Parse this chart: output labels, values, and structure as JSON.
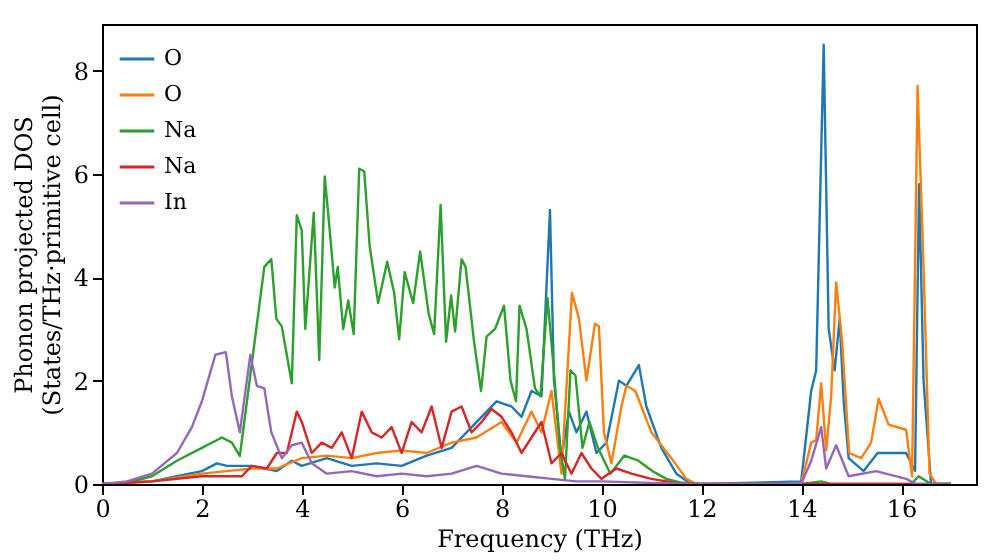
{
  "chart_data": {
    "type": "line",
    "xlabel": "Frequency (THz)",
    "ylabel": "Phonon projected DOS\n(States/THz·primitive cell)",
    "xlim": [
      0,
      17.5
    ],
    "ylim": [
      0,
      8.9
    ],
    "xticks": [
      0,
      2,
      4,
      6,
      8,
      10,
      12,
      14,
      16
    ],
    "yticks": [
      0,
      2,
      4,
      6,
      8
    ],
    "grid": false,
    "legend": "top left",
    "marker": "none",
    "line_style": "solid",
    "series": [
      {
        "name": "O",
        "color": "#1f77b4",
        "x": [
          0,
          1,
          1.5,
          2,
          2.3,
          2.5,
          3,
          3.5,
          3.8,
          4,
          4.5,
          5,
          5.5,
          6,
          6.5,
          7,
          7.3,
          7.6,
          7.9,
          8.2,
          8.4,
          8.6,
          8.8,
          8.97,
          9.05,
          9.2,
          9.35,
          9.5,
          9.7,
          9.9,
          10.1,
          10.35,
          10.5,
          10.75,
          10.9,
          11.2,
          11.5,
          11.8,
          12,
          14,
          14.2,
          14.3,
          14.45,
          14.55,
          14.67,
          14.77,
          14.85,
          14.95,
          15.25,
          15.53,
          16.1,
          16.28,
          16.36,
          16.45,
          16.6,
          17
        ],
        "values": [
          0,
          0.05,
          0.15,
          0.25,
          0.4,
          0.35,
          0.35,
          0.25,
          0.45,
          0.35,
          0.5,
          0.35,
          0.4,
          0.35,
          0.55,
          0.7,
          1.0,
          1.3,
          1.6,
          1.5,
          1.3,
          1.8,
          1.7,
          5.3,
          2.0,
          0.5,
          1.4,
          1.0,
          1.4,
          0.6,
          0.8,
          2.0,
          1.9,
          2.3,
          1.5,
          0.7,
          0.2,
          0,
          0,
          0.05,
          1.8,
          2.2,
          8.5,
          3.0,
          2.2,
          3.2,
          1.6,
          0.5,
          0.25,
          0.6,
          0.6,
          0.25,
          5.8,
          2.0,
          0,
          0
        ]
      },
      {
        "name": "O",
        "color": "#ff7f0e",
        "x": [
          0,
          1,
          2,
          2.5,
          3,
          3.5,
          4,
          4.5,
          5,
          5.5,
          6,
          6.5,
          7,
          7.5,
          8,
          8.3,
          8.6,
          8.8,
          9.0,
          9.2,
          9.41,
          9.55,
          9.7,
          9.87,
          9.95,
          10.05,
          10.2,
          10.4,
          10.5,
          10.68,
          11.0,
          11.4,
          11.7,
          11.9,
          12,
          14,
          14.2,
          14.3,
          14.4,
          14.5,
          14.6,
          14.7,
          14.82,
          14.96,
          15.2,
          15.4,
          15.55,
          15.75,
          16.1,
          16.22,
          16.33,
          16.44,
          16.57,
          16.7,
          17
        ],
        "values": [
          0,
          0.05,
          0.2,
          0.25,
          0.3,
          0.3,
          0.5,
          0.55,
          0.5,
          0.6,
          0.65,
          0.6,
          0.8,
          0.9,
          1.2,
          0.8,
          1.4,
          1.0,
          1.8,
          0.2,
          3.7,
          3.2,
          2.0,
          3.1,
          3.05,
          1.0,
          0.4,
          1.5,
          1.9,
          1.8,
          1.0,
          0.5,
          0.1,
          0,
          0,
          0,
          0.8,
          0.85,
          1.95,
          0.65,
          1.7,
          3.9,
          2.75,
          0.6,
          0.5,
          0.8,
          1.65,
          1.15,
          1.05,
          0.15,
          7.7,
          4.5,
          0.2,
          0,
          0
        ]
      },
      {
        "name": "Na",
        "color": "#2ca02c",
        "x": [
          0,
          0.5,
          1.0,
          1.5,
          2.0,
          2.4,
          2.6,
          2.76,
          3.25,
          3.39,
          3.49,
          3.6,
          3.8,
          3.9,
          4.0,
          4.07,
          4.24,
          4.35,
          4.46,
          4.56,
          4.66,
          4.72,
          4.83,
          4.93,
          5.04,
          5.15,
          5.25,
          5.36,
          5.53,
          5.71,
          5.85,
          5.95,
          6.06,
          6.23,
          6.37,
          6.54,
          6.65,
          6.78,
          6.89,
          6.99,
          7.07,
          7.2,
          7.28,
          7.45,
          7.59,
          7.7,
          7.87,
          8.05,
          8.18,
          8.29,
          8.36,
          8.5,
          8.67,
          8.78,
          8.92,
          9.03,
          9.17,
          9.27,
          9.38,
          9.48,
          9.62,
          9.76,
          9.93,
          10.18,
          10.46,
          10.74,
          11.02,
          11.3,
          11.58,
          12,
          14,
          14.4,
          14.6,
          16.2,
          16.35,
          16.6,
          17
        ],
        "values": [
          0,
          0.02,
          0.15,
          0.45,
          0.7,
          0.9,
          0.8,
          0.54,
          4.2,
          4.35,
          3.2,
          3.05,
          1.95,
          5.2,
          4.9,
          3.0,
          5.25,
          2.4,
          5.95,
          4.9,
          3.8,
          4.2,
          3.0,
          3.55,
          2.9,
          6.1,
          6.05,
          4.6,
          3.5,
          4.3,
          3.7,
          2.8,
          4.1,
          3.5,
          4.5,
          3.3,
          2.9,
          5.4,
          2.75,
          3.65,
          2.95,
          4.35,
          4.2,
          2.75,
          1.8,
          2.85,
          3.0,
          3.45,
          2.0,
          1.6,
          3.45,
          3.0,
          1.85,
          1.7,
          3.6,
          2.4,
          0.7,
          0.1,
          2.2,
          2.1,
          0.7,
          1.2,
          0.7,
          0.2,
          0.55,
          0.45,
          0.25,
          0.1,
          0.03,
          0,
          0,
          0.05,
          0,
          0,
          0.15,
          0,
          0
        ]
      },
      {
        "name": "Na",
        "color": "#d62728",
        "x": [
          0,
          1,
          2,
          2.8,
          3.0,
          3.3,
          3.5,
          3.7,
          3.9,
          4.0,
          4.2,
          4.4,
          4.6,
          4.8,
          5.0,
          5.2,
          5.4,
          5.6,
          5.8,
          6.0,
          6.2,
          6.4,
          6.6,
          6.8,
          7.0,
          7.2,
          7.4,
          7.6,
          7.8,
          8.0,
          8.2,
          8.4,
          8.6,
          8.8,
          9.0,
          9.2,
          9.4,
          9.6,
          9.8,
          10.0,
          10.3,
          10.6,
          11,
          11.5,
          12,
          17
        ],
        "values": [
          0,
          0.05,
          0.15,
          0.15,
          0.35,
          0.3,
          0.6,
          0.6,
          1.4,
          1.2,
          0.6,
          0.8,
          0.7,
          1.0,
          0.5,
          1.4,
          1.0,
          0.9,
          1.1,
          0.6,
          1.2,
          1.0,
          1.5,
          0.7,
          1.4,
          1.5,
          1.0,
          1.2,
          1.45,
          1.3,
          1.0,
          0.6,
          0.9,
          1.2,
          0.4,
          0.6,
          0.2,
          0.6,
          0.3,
          0.1,
          0.3,
          0.2,
          0.1,
          0.02,
          0,
          0
        ]
      },
      {
        "name": "In",
        "color": "#9467bd",
        "x": [
          0,
          0.5,
          1,
          1.5,
          1.8,
          2.0,
          2.27,
          2.48,
          2.6,
          2.76,
          2.97,
          3.1,
          3.25,
          3.39,
          3.6,
          3.8,
          4.0,
          4.2,
          4.5,
          5,
          5.5,
          6,
          6.5,
          7,
          7.5,
          8,
          8.5,
          9,
          9.5,
          10,
          11,
          12,
          14,
          14.2,
          14.4,
          14.5,
          14.7,
          14.95,
          15.5,
          16.1,
          16.3,
          17
        ],
        "values": [
          0,
          0.05,
          0.2,
          0.6,
          1.1,
          1.6,
          2.5,
          2.55,
          1.7,
          1.0,
          2.5,
          1.9,
          1.85,
          1.0,
          0.5,
          0.75,
          0.8,
          0.4,
          0.2,
          0.25,
          0.15,
          0.2,
          0.15,
          0.2,
          0.35,
          0.2,
          0.15,
          0.1,
          0.05,
          0.05,
          0.02,
          0,
          0,
          0.45,
          1.1,
          0.3,
          0.75,
          0.15,
          0.25,
          0.1,
          0,
          0
        ]
      }
    ]
  }
}
